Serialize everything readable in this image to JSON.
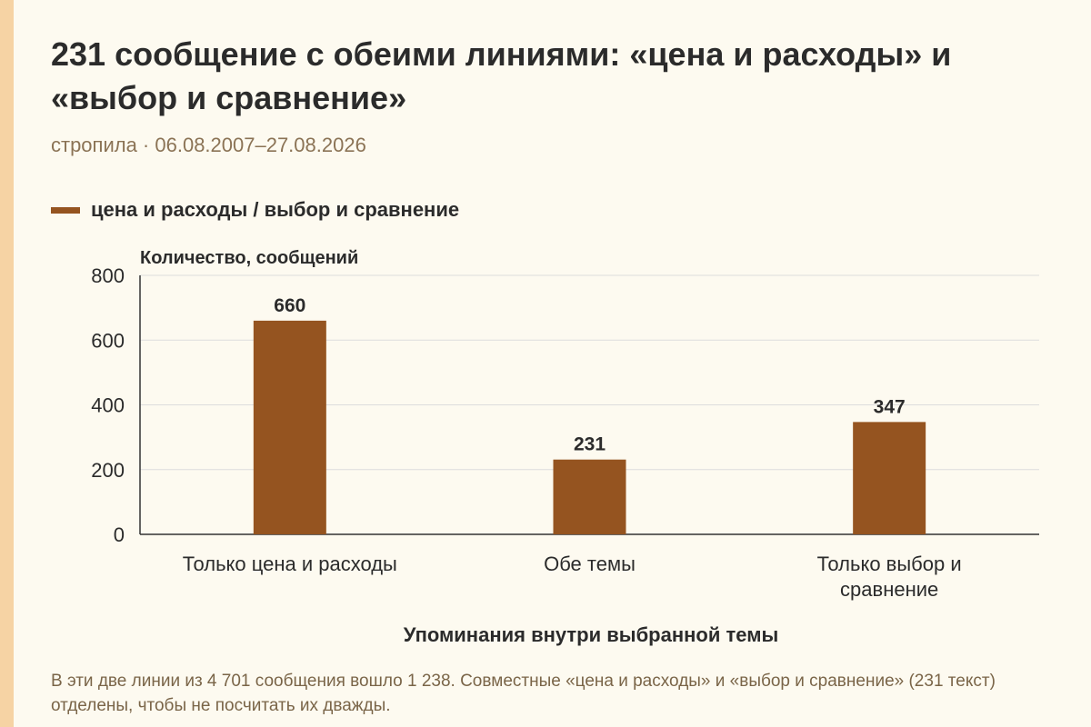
{
  "header": {
    "title": "231 сообщение с обеими линиями: «цена и расходы» и «выбор и сравнение»",
    "subtitle": "стропила · 06.08.2007–27.08.2026"
  },
  "footer": {
    "note": "В эти две линии из 4 701 сообщения вошло 1 238. Совместные «цена и расходы» и «выбор и сравнение» (231 текст) отделены, чтобы не посчитать их дважды."
  },
  "colors": {
    "bar": "#955420",
    "accent": "#f6d3a4",
    "grid": "#dddddd",
    "axis": "#333333",
    "text": "#2b2b2b"
  },
  "chart_data": {
    "type": "bar",
    "title": "231 сообщение с обеими линиями: «цена и расходы» и «выбор и сравнение»",
    "subtitle": "стропила · 06.08.2007–27.08.2026",
    "categories": [
      "Только цена и расходы",
      "Обе темы",
      "Только выбор и сравнение"
    ],
    "series": [
      {
        "name": "цена и расходы / выбор и сравнение",
        "values": [
          660,
          231,
          347
        ]
      }
    ],
    "value_labels": [
      "660",
      "231",
      "347"
    ],
    "ylabel": "Количество, сообщений",
    "xlabel": "Упоминания внутри выбранной темы",
    "ylim": [
      0,
      800
    ],
    "yticks": [
      0,
      200,
      400,
      600,
      800
    ],
    "ytick_labels": [
      "0",
      "200",
      "400",
      "600",
      "800"
    ],
    "grid": true,
    "legend": "top-left"
  }
}
